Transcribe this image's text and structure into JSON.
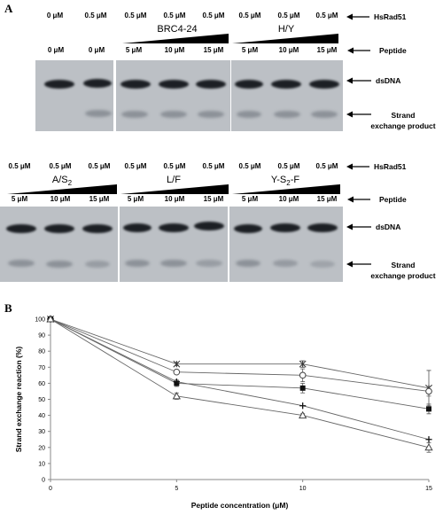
{
  "panel_a": {
    "letter": "A",
    "row_labels": {
      "protein": "HsRad51",
      "peptide": "Peptide",
      "dsdna": "dsDNA",
      "product_line1": "Strand",
      "product_line2": "exchange product"
    },
    "top_row": {
      "rad51": [
        "0 μM",
        "0.5 μM",
        "0.5 μM",
        "0.5 μM",
        "0.5 μM",
        "0.5 μM",
        "0.5 μM",
        "0.5 μM"
      ],
      "peptide_conc": [
        "0 μM",
        "0 μM",
        "5 μM",
        "10 μM",
        "15 μM",
        "5 μM",
        "10 μM",
        "15 μM"
      ],
      "peptide_names": [
        "BRC4-24",
        "H/Y"
      ]
    },
    "bottom_row": {
      "rad51": [
        "0.5 μM",
        "0.5 μM",
        "0.5 μM",
        "0.5 μM",
        "0.5 μM",
        "0.5 μM",
        "0.5 μM",
        "0.5 μM",
        "0.5 μM"
      ],
      "peptide_conc": [
        "5 μM",
        "10 μM",
        "15 μM",
        "5 μM",
        "10 μM",
        "15 μM",
        "5 μM",
        "10 μM",
        "15 μM"
      ],
      "peptide_names": [
        "A/S",
        "L/F",
        "Y-S",
        "-F"
      ],
      "subscript": "2"
    }
  },
  "panel_b": {
    "letter": "B",
    "chart_data": {
      "type": "line",
      "xlabel": "Peptide concentration (μM)",
      "ylabel": "Strand exchange reaction (%)",
      "x": [
        0,
        5,
        10,
        15
      ],
      "xticks": [
        0,
        5,
        10,
        15
      ],
      "ylim": [
        0,
        100
      ],
      "yticks": [
        0,
        10,
        20,
        30,
        40,
        50,
        60,
        70,
        80,
        90,
        100
      ],
      "grid": false,
      "legend": "none",
      "series": [
        {
          "marker": "asterisk",
          "values": [
            100,
            72,
            72,
            57
          ],
          "err": [
            0,
            1,
            2,
            11
          ]
        },
        {
          "marker": "open-circle",
          "values": [
            100,
            67,
            65,
            55
          ],
          "err": [
            0,
            0,
            4,
            3
          ]
        },
        {
          "marker": "filled-square",
          "values": [
            100,
            60,
            57,
            44
          ],
          "err": [
            0,
            2,
            3,
            3
          ]
        },
        {
          "marker": "plus",
          "values": [
            100,
            61,
            46,
            25
          ],
          "err": [
            0,
            0,
            0,
            0
          ]
        },
        {
          "marker": "open-triangle",
          "values": [
            100,
            52,
            40,
            20
          ],
          "err": [
            0,
            2,
            1,
            3
          ]
        }
      ]
    }
  }
}
